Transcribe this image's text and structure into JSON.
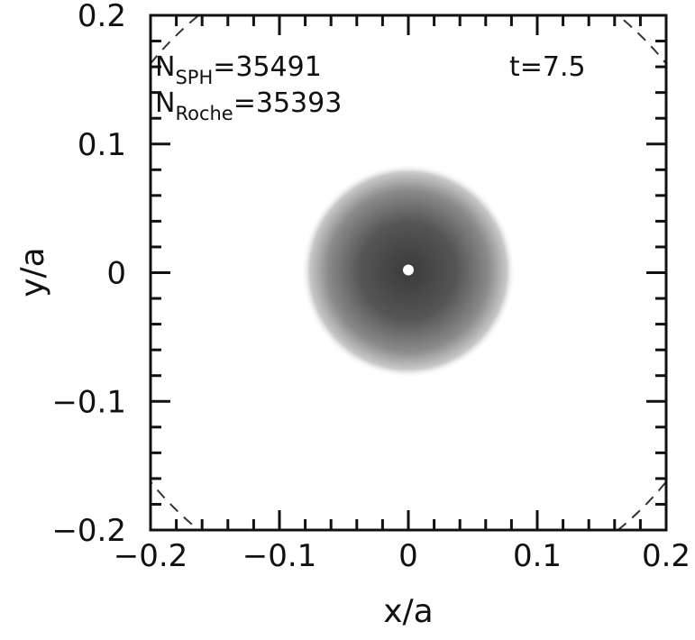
{
  "chart_data": {
    "type": "heatmap",
    "xlabel": "x/a",
    "ylabel": "y/a",
    "xlim": [
      -0.2,
      0.2
    ],
    "ylim": [
      -0.2,
      0.2
    ],
    "xticks": [
      "-0.2",
      "-0.1",
      "0",
      "0.1",
      "0.2"
    ],
    "yticks": [
      "-0.2",
      "-0.1",
      "0",
      "0.1",
      "0.2"
    ],
    "xtick_values": [
      -0.2,
      -0.1,
      0,
      0.1,
      0.2
    ],
    "ytick_values": [
      -0.2,
      -0.1,
      0,
      0.1,
      0.2
    ],
    "minor_tick_step": 0.02,
    "grid": false,
    "annotations": {
      "n_sph_label": "N",
      "n_sph_sub": "SPH",
      "n_sph_value": "=35491",
      "n_roche_label": "N",
      "n_roche_sub": "Roche",
      "n_roche_value": "=35393",
      "time": "t=7.5"
    },
    "density_blob": {
      "center": [
        0,
        0
      ],
      "radius": 0.083,
      "colormap": "grayscale, darker toward center"
    },
    "central_point": {
      "x": 0,
      "y": 0,
      "color": "#ffffff"
    },
    "roche_lobe_dashed_circle": {
      "center": [
        0,
        0
      ],
      "radius": 0.2575
    }
  }
}
